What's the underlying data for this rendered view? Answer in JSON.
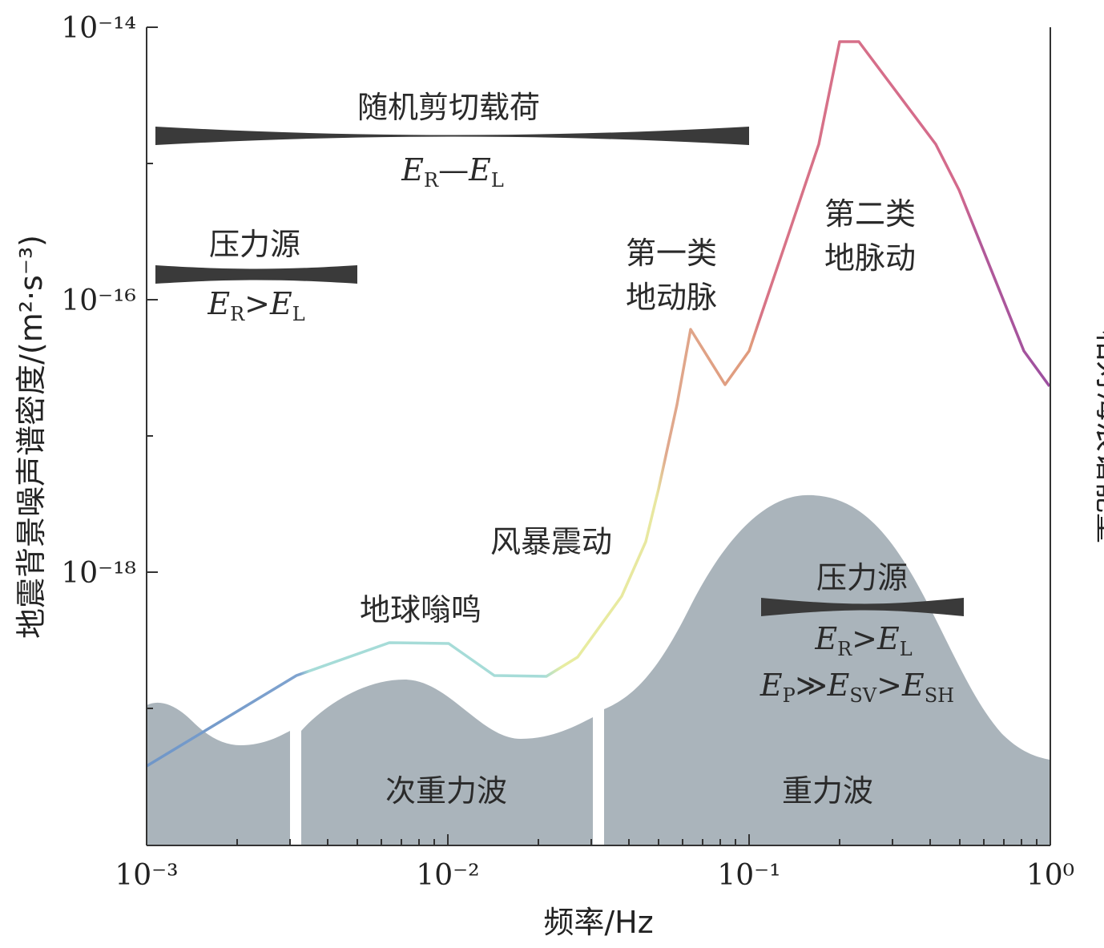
{
  "chart_data": {
    "type": "line",
    "xlabel": "频率/Hz",
    "ylabel": "地震背景噪声谱密度/(m²·s⁻³)",
    "ylabel_right": "相对海浪谱能量",
    "x_scale": "log",
    "y_scale": "log",
    "xlim": [
      0.001,
      1
    ],
    "ylim": [
      1e-20,
      1e-14
    ],
    "x_ticks": [
      0.001,
      0.01,
      0.1,
      1
    ],
    "x_tick_labels": [
      "10⁻³",
      "10⁻²",
      "10⁻¹",
      "10⁰"
    ],
    "y_ticks": [
      1e-18,
      1e-16,
      1e-14
    ],
    "y_tick_labels": [
      "10⁻¹⁸",
      "10⁻¹⁶",
      "10⁻¹⁴"
    ],
    "series": [
      {
        "color": "#e8eda0",
        "x": [
          0.001,
          0.003,
          0.0063,
          0.01,
          0.0146,
          0.021,
          0.0267,
          0.037,
          0.0446,
          0.0495
        ],
        "y": [
          4.2e-20,
          1.6e-19,
          3.7e-19,
          3.7e-19,
          1.64e-19,
          1.62e-19,
          2.6e-19,
          8.2e-19,
          2.2e-18,
          5.8e-18
        ]
      },
      {
        "color": "#d88a6e",
        "x": [
          0.0495,
          0.0545,
          0.0615,
          0.0705,
          0.0808,
          0.0935,
          0.105,
          0.128,
          0.163,
          0.2,
          0.227,
          0.32,
          0.41,
          0.56,
          0.79,
          1.0
        ],
        "y": [
          5.8e-18,
          2.4e-17,
          8.6e-17,
          5e-17,
          3.4e-17,
          5.7e-17,
          9e-17,
          4.4e-16,
          1.9e-15,
          8.6e-15,
          8.6e-15,
          4e-15,
          1.9e-15,
          4e-16,
          6.2e-17,
          3.5e-17
        ]
      }
    ],
    "annotations": {
      "random_shear": {
        "title": "随机剪切载荷",
        "E": "E",
        "sub_R": "R",
        "op": "—",
        "sub_L": "L"
      },
      "pressure_top": {
        "title": "压力源",
        "E": "E",
        "sub_R": "R",
        "op": ">",
        "sub_L": "L"
      },
      "primary": {
        "line1": "第一类",
        "line2": "地动脉"
      },
      "secondary": {
        "line1": "第二类",
        "line2": "地脉动"
      },
      "storm": "风暴震动",
      "hum": "地球嗡鸣",
      "pressure_bottom": {
        "title": "压力源",
        "E": "E",
        "sub_R": "R",
        "op": ">",
        "sub_L": "L",
        "sub_P": "P",
        "op2": "≫",
        "sub_SV": "SV",
        "op3": ">",
        "sub_SH": "SH"
      },
      "infragravity": "次重力波",
      "gravity": "重力波"
    },
    "colors": {
      "band_fill": "#aab4bb",
      "bar_fill": "#3a3a3a",
      "curve_blue": "#6f96c8",
      "curve_cyan": "#a6dcd8",
      "curve_yellow": "#e8eda0",
      "curve_orange": "#d88a6e",
      "curve_pink": "#d46a8c",
      "curve_purple": "#9c4fa0"
    }
  }
}
